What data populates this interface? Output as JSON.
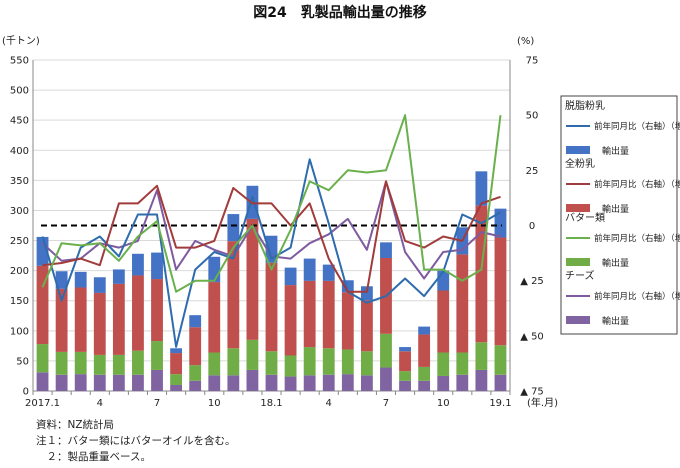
{
  "title": "図24　乳製品輸出量の推移",
  "notes": [
    "資料：NZ統計局",
    "注１：バター類にはバターオイルを含む。",
    "　２：製品重量ベース。"
  ],
  "colors": {
    "skim_line": "#2e6cae",
    "skim_bar": "#4472c4",
    "whole_line": "#a23b3b",
    "whole_bar": "#c0504d",
    "butter_line": "#6ab04c",
    "butter_bar": "#70ad47",
    "cheese_line": "#7e5ba0",
    "cheese_bar": "#8064a2",
    "zero_line": "#000000",
    "grid": "#d9d9d9"
  },
  "chart_data": {
    "type": "bar",
    "stacked": true,
    "y_left_label": "(千トン)",
    "y_right_label": "(%)",
    "x_unit": "(年.月)",
    "ylim_left": [
      0,
      550
    ],
    "ylim_right": [
      -75,
      75
    ],
    "right_axis_reversed_negative_marker": "▲",
    "left_ticks": [
      "0",
      "50",
      "100",
      "150",
      "200",
      "250",
      "300",
      "350",
      "400",
      "450",
      "500",
      "550"
    ],
    "right_ticks": [
      "75",
      "50",
      "25",
      "0",
      "▲ 25",
      "▲ 50",
      "▲ 75"
    ],
    "right_tick_values": [
      75,
      50,
      25,
      0,
      -25,
      -50,
      -75
    ],
    "categories": [
      "2017.1",
      "2",
      "3",
      "4",
      "5",
      "6",
      "7",
      "8",
      "9",
      "10",
      "11",
      "12",
      "18.1",
      "2",
      "3",
      "4",
      "5",
      "6",
      "7",
      "8",
      "9",
      "10",
      "11",
      "12",
      "19.1"
    ],
    "x_tick_labels": [
      "2017.1",
      "",
      "",
      "4",
      "",
      "",
      "7",
      "",
      "",
      "10",
      "",
      "",
      "18.1",
      "",
      "",
      "4",
      "",
      "",
      "7",
      "",
      "",
      "10",
      "",
      "",
      "19.1"
    ],
    "legend": [
      {
        "group": "脱脂粉乳",
        "line": "前年同月比（右軸）（増減率）",
        "bar": "輸出量"
      },
      {
        "group": "全粉乳",
        "line": "前年同月比（右軸）（増減率）",
        "bar": "輸出量"
      },
      {
        "group": "バター類",
        "line": "前年同月比（右軸）（増減率）",
        "bar": "輸出量"
      },
      {
        "group": "チーズ",
        "line": "前年同月比（右軸）（増減率）",
        "bar": "輸出量"
      }
    ],
    "bar_series": [
      {
        "name": "チーズ 輸出量",
        "values": [
          31,
          27,
          28,
          27,
          27,
          27,
          35,
          10,
          17,
          26,
          26,
          35,
          27,
          24,
          26,
          27,
          28,
          26,
          39,
          17,
          17,
          25,
          27,
          35,
          27
        ]
      },
      {
        "name": "バター類 輸出量",
        "values": [
          47,
          38,
          37,
          33,
          33,
          40,
          48,
          18,
          26,
          38,
          45,
          50,
          39,
          35,
          47,
          44,
          41,
          40,
          56,
          16,
          23,
          39,
          37,
          46,
          49
        ]
      },
      {
        "name": "全粉乳 輸出量",
        "values": [
          130,
          105,
          107,
          103,
          118,
          125,
          103,
          35,
          63,
          117,
          178,
          201,
          147,
          117,
          110,
          112,
          95,
          85,
          126,
          33,
          54,
          103,
          163,
          227,
          179
        ]
      },
      {
        "name": "脱脂粉乳 輸出量",
        "values": [
          48,
          29,
          26,
          26,
          24,
          36,
          44,
          8,
          20,
          42,
          45,
          55,
          45,
          29,
          37,
          27,
          20,
          23,
          26,
          7,
          13,
          33,
          45,
          57,
          48
        ]
      }
    ],
    "line_series": [
      {
        "name": "脱脂粉乳 前年同月比",
        "values": [
          -5,
          -34,
          -10,
          -5,
          -14,
          5,
          5,
          -55,
          -20,
          -12,
          -15,
          13,
          -15,
          -10,
          30,
          1,
          -30,
          -35,
          -32,
          -24,
          -32,
          -21,
          5,
          1,
          6
        ]
      },
      {
        "name": "全粉乳 前年同月比",
        "values": [
          -18,
          -17,
          -15,
          -18,
          10,
          10,
          18,
          -10,
          -10,
          -7,
          17,
          10,
          10,
          0,
          10,
          -15,
          -30,
          -30,
          20,
          -7,
          -10,
          -5,
          -7,
          10,
          13
        ]
      },
      {
        "name": "バター類 前年同月比",
        "values": [
          -28,
          -8,
          -9,
          -8,
          -16,
          -5,
          2,
          -30,
          -25,
          -25,
          -10,
          0,
          -20,
          -2,
          20,
          16,
          25,
          24,
          25,
          50,
          -20,
          -20,
          -25,
          -20,
          50
        ]
      },
      {
        "name": "チーズ 前年同月比",
        "values": [
          -8,
          -16,
          -15,
          -8,
          -10,
          -7,
          16,
          -20,
          -7,
          -11,
          -14,
          0,
          -14,
          -15,
          -8,
          -4,
          3,
          -11,
          20,
          -12,
          -24,
          -12,
          -11,
          -3,
          -5
        ]
      }
    ]
  }
}
